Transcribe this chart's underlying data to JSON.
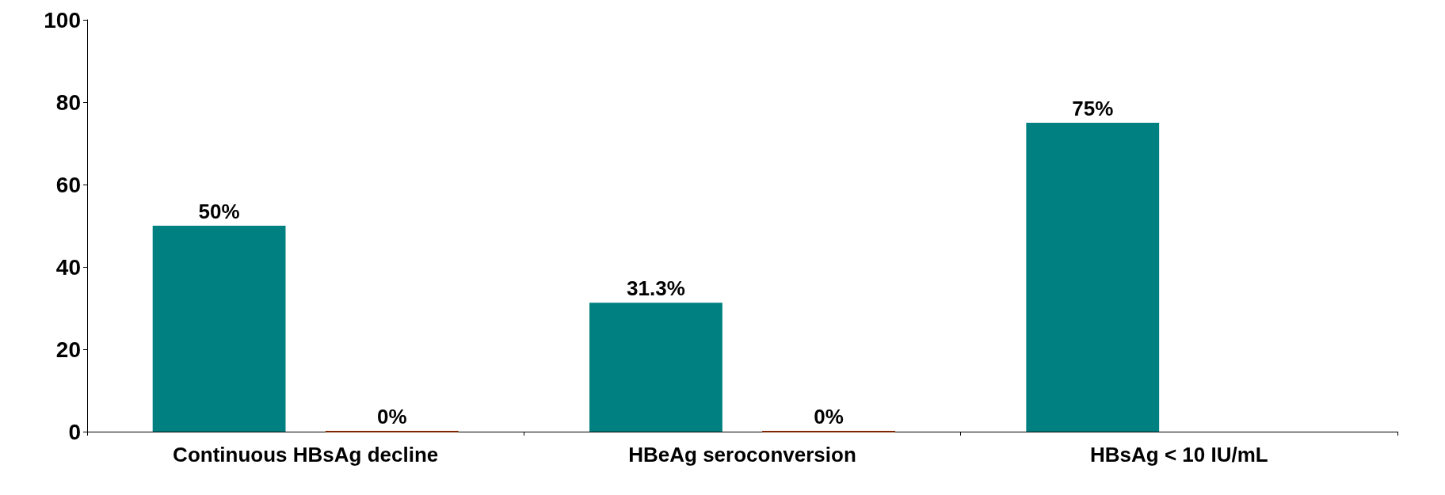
{
  "chart_data": {
    "type": "bar",
    "categories": [
      "Continuous HBsAg decline",
      "HBeAg seroconversion",
      "HBsAg < 10 IU/mL"
    ],
    "series": [
      {
        "color": "#008080",
        "values": [
          50,
          31.3,
          75
        ],
        "value_labels": [
          "50%",
          "31.3%",
          "75%"
        ]
      },
      {
        "color": "#7f2600",
        "values": [
          0,
          0,
          null
        ],
        "value_labels": [
          "0%",
          "0%",
          null
        ]
      }
    ],
    "ylim": [
      0,
      100
    ],
    "yticks": [
      0,
      20,
      40,
      60,
      80,
      100
    ],
    "grid": false
  }
}
